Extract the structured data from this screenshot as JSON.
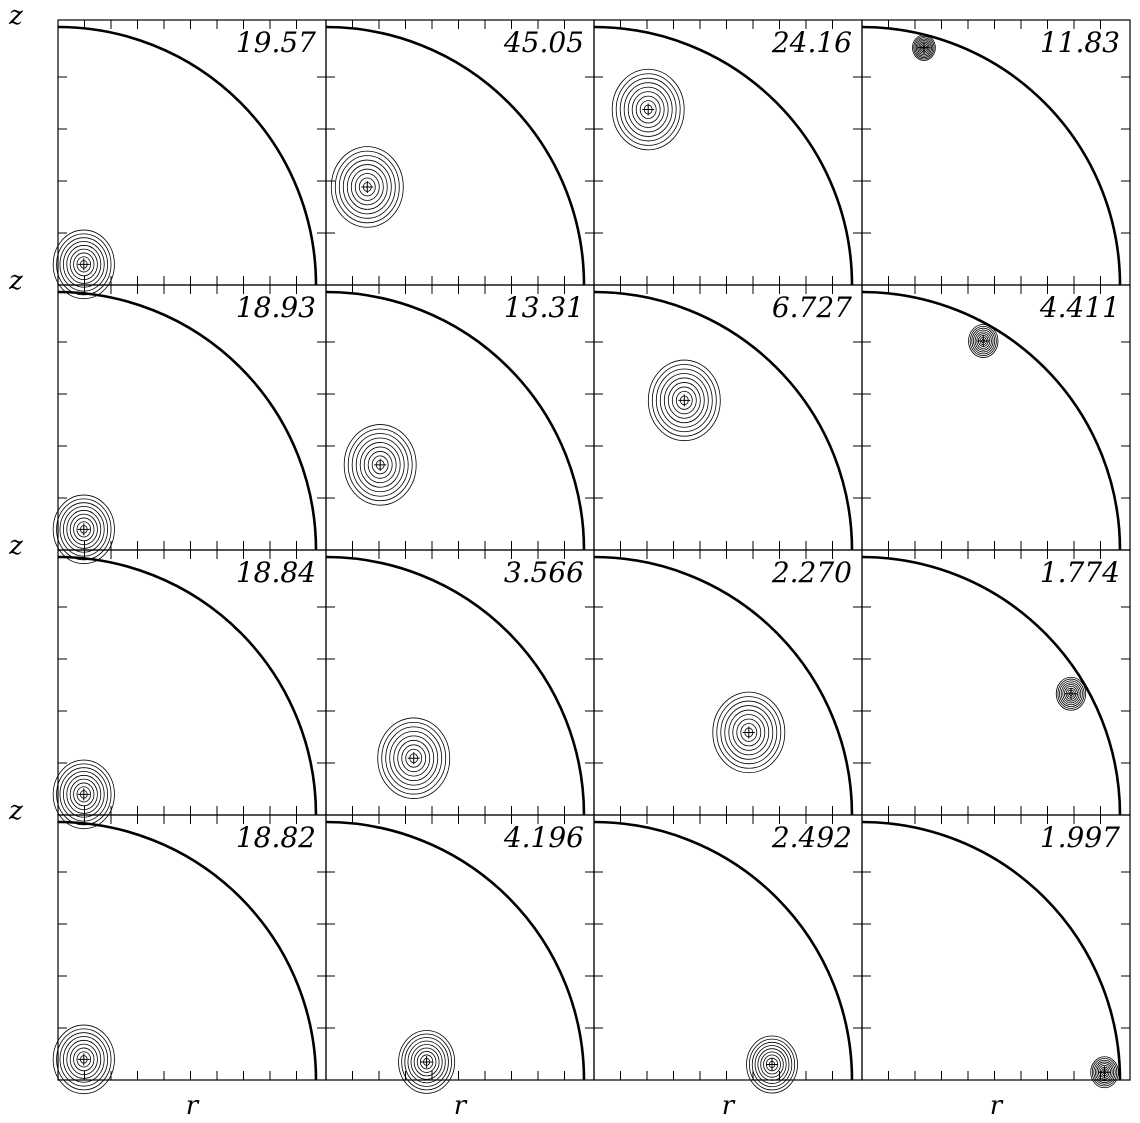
{
  "chart_data": {
    "type": "contour",
    "layout": {
      "rows": 4,
      "cols": 4
    },
    "xlabel": "r",
    "ylabel": "z",
    "grid": false,
    "panels": [
      {
        "row": 0,
        "col": 0,
        "value_label": "19.57",
        "peak": [
          0.1,
          0.08
        ]
      },
      {
        "row": 0,
        "col": 1,
        "value_label": "45.05",
        "peak": [
          0.16,
          0.38
        ]
      },
      {
        "row": 0,
        "col": 2,
        "value_label": "24.16",
        "peak": [
          0.21,
          0.68
        ]
      },
      {
        "row": 0,
        "col": 3,
        "value_label": "11.83",
        "peak": [
          0.24,
          0.92
        ]
      },
      {
        "row": 1,
        "col": 0,
        "value_label": "18.93",
        "peak": [
          0.1,
          0.08
        ]
      },
      {
        "row": 1,
        "col": 1,
        "value_label": "13.31",
        "peak": [
          0.21,
          0.33
        ]
      },
      {
        "row": 1,
        "col": 2,
        "value_label": "6.727",
        "peak": [
          0.35,
          0.58
        ]
      },
      {
        "row": 1,
        "col": 3,
        "value_label": "4.411",
        "peak": [
          0.47,
          0.81
        ]
      },
      {
        "row": 2,
        "col": 0,
        "value_label": "18.84",
        "peak": [
          0.1,
          0.08
        ]
      },
      {
        "row": 2,
        "col": 1,
        "value_label": "3.566",
        "peak": [
          0.34,
          0.22
        ]
      },
      {
        "row": 2,
        "col": 2,
        "value_label": "2.270",
        "peak": [
          0.6,
          0.32
        ]
      },
      {
        "row": 2,
        "col": 3,
        "value_label": "1.774",
        "peak": [
          0.81,
          0.47
        ]
      },
      {
        "row": 3,
        "col": 0,
        "value_label": "18.82",
        "peak": [
          0.1,
          0.08
        ]
      },
      {
        "row": 3,
        "col": 1,
        "value_label": "4.196",
        "peak": [
          0.39,
          0.07
        ]
      },
      {
        "row": 3,
        "col": 2,
        "value_label": "2.492",
        "peak": [
          0.69,
          0.06
        ]
      },
      {
        "row": 3,
        "col": 3,
        "value_label": "1.997",
        "peak": [
          0.94,
          0.03
        ]
      }
    ]
  }
}
